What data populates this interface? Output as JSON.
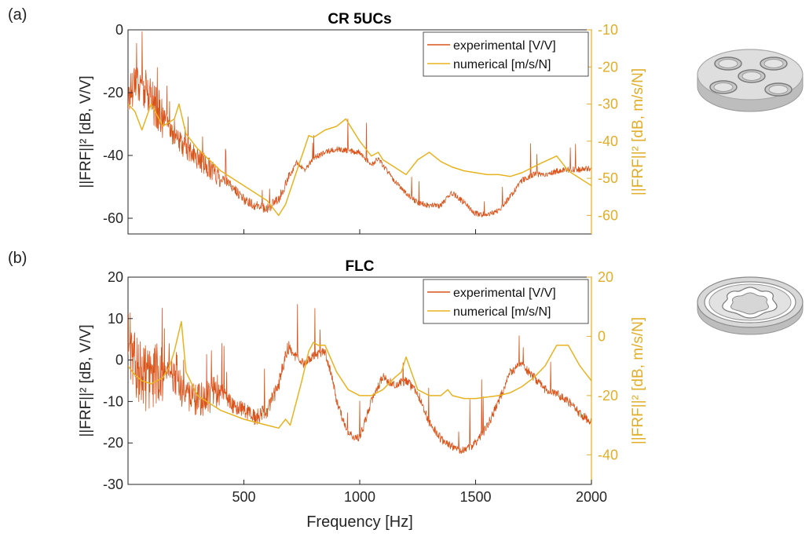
{
  "panels": [
    {
      "label": "(a)"
    },
    {
      "label": "(b)"
    }
  ],
  "colors": {
    "experimental": "#d9541a",
    "numerical": "#e8b320",
    "right_axis": "#e0ae2a",
    "axis": "#262626"
  },
  "chart_data": [
    {
      "type": "line",
      "title": "CR 5UCs",
      "xlabel": "",
      "ylabel_left": "||FRF||² [dB, V/V]",
      "ylabel_right": "||FRF||² [dB, m/s/N]",
      "xlim": [
        0,
        2000
      ],
      "ylim_left": [
        -65,
        0
      ],
      "ylim_right": [
        -65,
        -10
      ],
      "yticks_left": [
        "0",
        "-20",
        "-40",
        "-60"
      ],
      "yticks_left_values": [
        0,
        -20,
        -40,
        -60
      ],
      "yticks_right": [
        "-10",
        "-20",
        "-30",
        "-40",
        "-50",
        "-60"
      ],
      "yticks_right_values": [
        -10,
        -20,
        -30,
        -40,
        -50,
        -60
      ],
      "legend_position": "top-right",
      "series": [
        {
          "name": "experimental [V/V]",
          "axis": "left",
          "noisy": true,
          "x": [
            0,
            30,
            60,
            100,
            150,
            200,
            250,
            300,
            350,
            400,
            450,
            500,
            550,
            600,
            650,
            700,
            730,
            760,
            800,
            850,
            900,
            950,
            1000,
            1050,
            1080,
            1110,
            1150,
            1200,
            1250,
            1300,
            1350,
            1380,
            1400,
            1450,
            1500,
            1550,
            1600,
            1650,
            1700,
            1750,
            1800,
            1850,
            1900,
            1950,
            2000
          ],
          "y": [
            -22,
            -15,
            -18,
            -22,
            -28,
            -34,
            -38,
            -41,
            -44,
            -47,
            -50,
            -54,
            -56,
            -57,
            -54,
            -46,
            -42,
            -45,
            -41,
            -39,
            -38,
            -38.5,
            -39,
            -43,
            -41,
            -44,
            -48,
            -52,
            -55,
            -56,
            -56,
            -53,
            -52,
            -55,
            -58.5,
            -59,
            -57.5,
            -53,
            -48,
            -46,
            -46,
            -45,
            -44.5,
            -44.5,
            -44
          ]
        },
        {
          "name": "numerical [m/s/N]",
          "axis": "right",
          "x": [
            0,
            30,
            60,
            100,
            150,
            200,
            220,
            250,
            300,
            400,
            500,
            600,
            650,
            680,
            750,
            780,
            800,
            850,
            900,
            940,
            1000,
            1050,
            1080,
            1100,
            1150,
            1200,
            1250,
            1300,
            1350,
            1400,
            1450,
            1500,
            1550,
            1600,
            1650,
            1700,
            1780,
            1850,
            1900,
            2000
          ],
          "y": [
            -30,
            -32,
            -37,
            -30,
            -36,
            -34,
            -30,
            -38,
            -42,
            -48,
            -52,
            -56,
            -60,
            -57,
            -44,
            -38.5,
            -39,
            -37,
            -36,
            -34,
            -40,
            -44,
            -43,
            -45,
            -47,
            -49,
            -45,
            -43,
            -45.5,
            -47,
            -48,
            -48.5,
            -49,
            -49,
            -49.5,
            -48.5,
            -46,
            -44,
            -48,
            -52
          ]
        }
      ]
    },
    {
      "type": "line",
      "title": "FLC",
      "xlabel": "Frequency [Hz]",
      "ylabel_left": "||FRF||² [dB, V/V]",
      "ylabel_right": "||FRF||² [dB, m/s/N]",
      "xlim": [
        0,
        2000
      ],
      "ylim_left": [
        -30,
        20
      ],
      "ylim_right": [
        -50,
        20
      ],
      "xticks": [
        "500",
        "1000",
        "1500",
        "2000"
      ],
      "xticks_values": [
        500,
        1000,
        1500,
        2000
      ],
      "yticks_left": [
        "20",
        "10",
        "0",
        "-10",
        "-20",
        "-30"
      ],
      "yticks_left_values": [
        20,
        10,
        0,
        -10,
        -20,
        -30
      ],
      "yticks_right": [
        "20",
        "0",
        "-20",
        "-40"
      ],
      "yticks_right_values": [
        20,
        0,
        -20,
        -40
      ],
      "legend_position": "top-right",
      "series": [
        {
          "name": "experimental [V/V]",
          "axis": "left",
          "noisy": true,
          "x": [
            0,
            30,
            60,
            100,
            150,
            200,
            250,
            300,
            350,
            400,
            450,
            500,
            550,
            600,
            650,
            690,
            720,
            760,
            800,
            850,
            880,
            900,
            950,
            1000,
            1050,
            1100,
            1150,
            1200,
            1250,
            1300,
            1350,
            1400,
            1450,
            1500,
            1550,
            1600,
            1650,
            1700,
            1750,
            1800,
            1850,
            1900,
            1950,
            2000
          ],
          "y": [
            5,
            0,
            -4,
            -5,
            -3,
            -4,
            -9,
            -10,
            -9,
            -7,
            -11,
            -12,
            -14,
            -12,
            -6,
            3,
            1,
            -1,
            1,
            2,
            -4,
            -10,
            -18,
            -19,
            -10,
            -4,
            -6,
            -5,
            -8,
            -15,
            -19,
            -21,
            -22,
            -20,
            -16,
            -10,
            -3,
            -1,
            -4,
            -7,
            -8,
            -10,
            -13,
            -15
          ]
        },
        {
          "name": "numerical [m/s/N]",
          "axis": "right",
          "x": [
            0,
            30,
            60,
            100,
            150,
            180,
            200,
            230,
            250,
            300,
            400,
            500,
            600,
            650,
            680,
            700,
            750,
            780,
            800,
            820,
            850,
            900,
            950,
            1000,
            1050,
            1100,
            1150,
            1180,
            1200,
            1250,
            1300,
            1350,
            1380,
            1400,
            1450,
            1500,
            1550,
            1600,
            1650,
            1700,
            1750,
            1800,
            1850,
            1900,
            1950,
            2000
          ],
          "y": [
            -10,
            -13,
            -15,
            -16,
            -14,
            -10,
            -5,
            5,
            -12,
            -20,
            -25,
            -28,
            -30,
            -31,
            -28,
            -30,
            -15,
            -5,
            -2,
            -3,
            -3,
            -12,
            -18,
            -20,
            -20,
            -18,
            -14,
            -12,
            -7,
            -18,
            -20,
            -20,
            -18,
            -20,
            -21,
            -21,
            -20.5,
            -20,
            -19,
            -17,
            -14,
            -10,
            -3,
            -3,
            -10,
            -15
          ]
        }
      ]
    }
  ]
}
